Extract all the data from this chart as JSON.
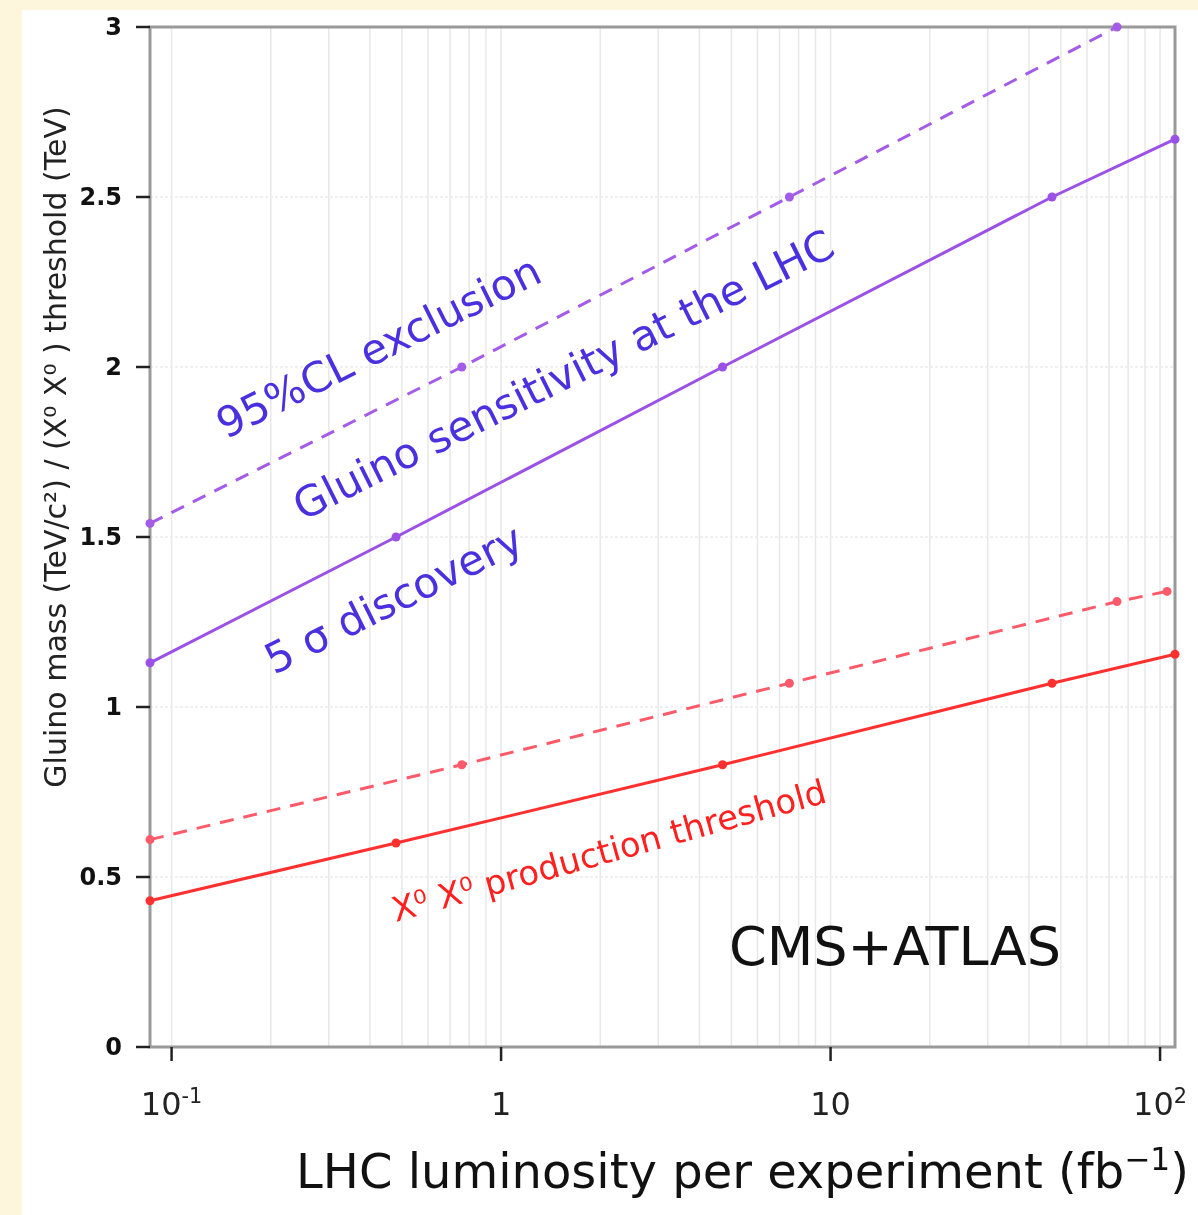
{
  "chart_data": {
    "type": "line",
    "title": "Gluino sensitivity at the LHC",
    "xlabel": "LHC luminosity per experiment (fb$^{−1}$)",
    "ylabel": "Gluino mass (TeV/c²) / (X⁰ X⁰ ) threshold (TeV)",
    "log": "x",
    "grid": true,
    "marker": "circle",
    "xlim": [
      0.086,
      111
    ],
    "ylim": [
      0,
      3
    ],
    "xticks": [
      {
        "value": 0.1,
        "label": "10$^{-1}$"
      },
      {
        "value": 0.2,
        "label": null
      },
      {
        "value": 0.3,
        "label": null
      },
      {
        "value": 0.4,
        "label": null
      },
      {
        "value": 0.5,
        "label": null
      },
      {
        "value": 0.6,
        "label": null
      },
      {
        "value": 0.7,
        "label": null
      },
      {
        "value": 0.8,
        "label": null
      },
      {
        "value": 0.9,
        "label": null
      },
      1,
      {
        "value": 2,
        "label": null
      },
      {
        "value": 3,
        "label": null
      },
      {
        "value": 4,
        "label": null
      },
      {
        "value": 5,
        "label": null
      },
      {
        "value": 6,
        "label": null
      },
      {
        "value": 7,
        "label": null
      },
      {
        "value": 8,
        "label": null
      },
      {
        "value": 9,
        "label": null
      },
      10,
      {
        "value": 20,
        "label": null
      },
      {
        "value": 30,
        "label": null
      },
      {
        "value": 40,
        "label": null
      },
      {
        "value": 50,
        "label": null
      },
      {
        "value": 60,
        "label": null
      },
      {
        "value": 70,
        "label": null
      },
      {
        "value": 80,
        "label": null
      },
      {
        "value": 90,
        "label": null
      },
      {
        "value": 100,
        "label": "10$^{2}$"
      }
    ],
    "yticks": [
      0,
      0.5,
      1,
      1.5,
      2,
      2.5,
      3
    ],
    "series": [
      {
        "color": "#a45ce8",
        "line_style": "dashed",
        "x": [
          0.086,
          0.76,
          7.5,
          74
        ],
        "values": [
          1.54,
          2.0,
          2.5,
          3.0
        ]
      },
      {
        "color": "#9b50e6",
        "line_style": "solid",
        "x": [
          0.086,
          0.48,
          4.7,
          47,
          111
        ],
        "values": [
          1.13,
          1.5,
          2.0,
          2.5,
          2.67
        ]
      },
      {
        "color": "#ff5a6a",
        "line_style": "dashed",
        "x": [
          0.086,
          0.76,
          7.5,
          74,
          105
        ],
        "values": [
          0.61,
          0.83,
          1.07,
          1.31,
          1.34
        ]
      },
      {
        "color": "#ff3030",
        "line_style": "solid",
        "x": [
          0.086,
          0.48,
          4.7,
          47,
          111
        ],
        "values": [
          0.43,
          0.6,
          0.83,
          1.07,
          1.155
        ]
      }
    ],
    "annotations": [
      "95%CL exclusion",
      "5 σ discovery",
      "X⁰ X⁰ production threshold",
      "CMS+ATLAS"
    ]
  }
}
